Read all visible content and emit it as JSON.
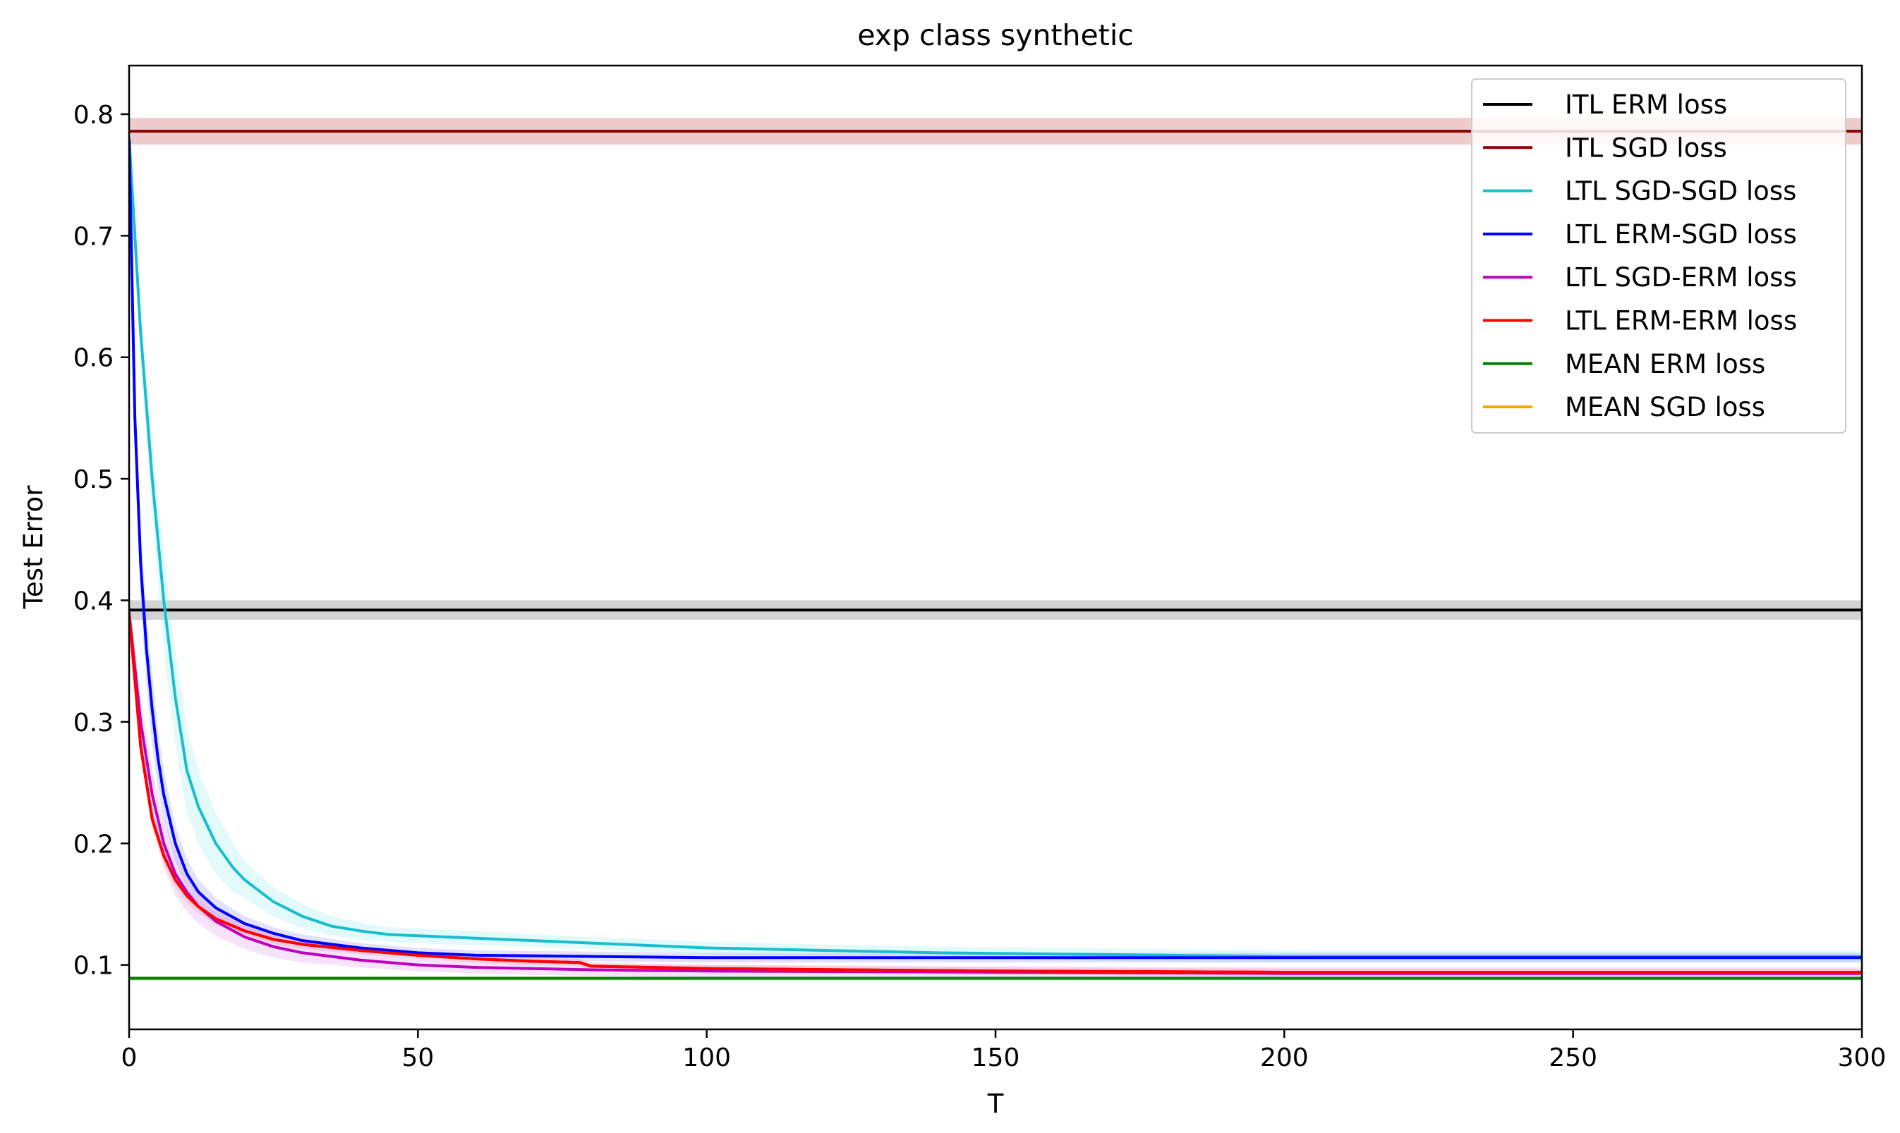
{
  "chart_data": {
    "type": "line",
    "title": "exp class synthetic",
    "xlabel": "T",
    "ylabel": "Test Error",
    "xlim": [
      0,
      300
    ],
    "ylim": [
      0.047,
      0.84
    ],
    "xticks": [
      0,
      50,
      100,
      150,
      200,
      250,
      300
    ],
    "yticks": [
      0.1,
      0.2,
      0.3,
      0.4,
      0.5,
      0.6,
      0.7,
      0.8
    ],
    "xtick_labels": [
      "0",
      "50",
      "100",
      "150",
      "200",
      "250",
      "300"
    ],
    "ytick_labels": [
      "0.1",
      "0.2",
      "0.3",
      "0.4",
      "0.5",
      "0.6",
      "0.7",
      "0.8"
    ],
    "grid": false,
    "legend_position": "top-right",
    "series": [
      {
        "name": "ITL ERM loss",
        "color": "#000000",
        "band_color": "#808080",
        "kind": "constant",
        "value": 0.392,
        "band": 0.008
      },
      {
        "name": "ITL SGD loss",
        "color": "#8b0000",
        "band_color": "#d46a6a",
        "kind": "constant",
        "value": 0.786,
        "band": 0.011
      },
      {
        "name": "LTL SGD-SGD loss",
        "color": "#17becf",
        "band_color": "#9ef0f0",
        "kind": "curve",
        "x": [
          0,
          2,
          4,
          6,
          8,
          10,
          12,
          15,
          18,
          20,
          25,
          30,
          35,
          40,
          45,
          50,
          60,
          70,
          80,
          90,
          100,
          120,
          140,
          160,
          180,
          200,
          250,
          300
        ],
        "y": [
          0.78,
          0.62,
          0.5,
          0.4,
          0.32,
          0.26,
          0.23,
          0.2,
          0.18,
          0.17,
          0.152,
          0.14,
          0.132,
          0.128,
          0.125,
          0.124,
          0.122,
          0.12,
          0.118,
          0.116,
          0.114,
          0.112,
          0.11,
          0.109,
          0.108,
          0.107,
          0.107,
          0.107
        ],
        "band": [
          0.02,
          0.02,
          0.03,
          0.04,
          0.04,
          0.035,
          0.03,
          0.025,
          0.02,
          0.015,
          0.012,
          0.01,
          0.008,
          0.007,
          0.006,
          0.006,
          0.006,
          0.005,
          0.005,
          0.005,
          0.005,
          0.005,
          0.005,
          0.005,
          0.005,
          0.005,
          0.005,
          0.005
        ]
      },
      {
        "name": "LTL ERM-SGD loss",
        "color": "#0000ff",
        "band_color": "#a0a0ff",
        "kind": "curve",
        "x": [
          0,
          1,
          2,
          3,
          4,
          5,
          6,
          8,
          10,
          12,
          15,
          20,
          25,
          30,
          40,
          50,
          60,
          80,
          100,
          150,
          200,
          250,
          300
        ],
        "y": [
          0.78,
          0.55,
          0.43,
          0.36,
          0.31,
          0.27,
          0.24,
          0.2,
          0.175,
          0.16,
          0.147,
          0.134,
          0.126,
          0.12,
          0.114,
          0.11,
          0.108,
          0.107,
          0.106,
          0.106,
          0.106,
          0.106,
          0.106
        ],
        "band": [
          0.01,
          0.02,
          0.03,
          0.03,
          0.03,
          0.025,
          0.02,
          0.015,
          0.012,
          0.01,
          0.008,
          0.006,
          0.005,
          0.005,
          0.004,
          0.004,
          0.004,
          0.004,
          0.004,
          0.004,
          0.004,
          0.004,
          0.004
        ]
      },
      {
        "name": "LTL SGD-ERM loss",
        "color": "#bf00bf",
        "band_color": "#e0a0f0",
        "kind": "curve",
        "x": [
          0,
          2,
          4,
          6,
          8,
          10,
          12,
          15,
          20,
          25,
          30,
          40,
          50,
          60,
          80,
          100,
          150,
          200,
          250,
          300
        ],
        "y": [
          0.39,
          0.3,
          0.24,
          0.2,
          0.175,
          0.16,
          0.148,
          0.136,
          0.123,
          0.115,
          0.11,
          0.104,
          0.1,
          0.098,
          0.096,
          0.095,
          0.094,
          0.093,
          0.093,
          0.093
        ],
        "band": [
          0.01,
          0.02,
          0.02,
          0.02,
          0.018,
          0.016,
          0.014,
          0.012,
          0.01,
          0.009,
          0.008,
          0.006,
          0.005,
          0.005,
          0.005,
          0.005,
          0.005,
          0.005,
          0.005,
          0.005
        ]
      },
      {
        "name": "LTL ERM-ERM loss",
        "color": "#ff0000",
        "band_color": "#ff9090",
        "kind": "curve",
        "x": [
          0,
          2,
          4,
          6,
          8,
          10,
          12,
          15,
          20,
          25,
          30,
          40,
          50,
          60,
          70,
          78,
          80,
          100,
          150,
          200,
          250,
          300
        ],
        "y": [
          0.39,
          0.28,
          0.22,
          0.19,
          0.17,
          0.157,
          0.148,
          0.138,
          0.128,
          0.121,
          0.117,
          0.112,
          0.108,
          0.105,
          0.103,
          0.102,
          0.099,
          0.097,
          0.095,
          0.094,
          0.094,
          0.094
        ],
        "band": [
          0.005,
          0.008,
          0.008,
          0.007,
          0.006,
          0.006,
          0.005,
          0.005,
          0.004,
          0.004,
          0.004,
          0.003,
          0.003,
          0.003,
          0.003,
          0.003,
          0.003,
          0.003,
          0.003,
          0.003,
          0.003,
          0.003
        ]
      },
      {
        "name": "MEAN ERM loss",
        "color": "#008000",
        "band_color": "#90d090",
        "kind": "constant",
        "value": 0.089,
        "band": 0.002
      },
      {
        "name": "MEAN SGD loss",
        "color": "#ffa500",
        "band_color": "#ffd890",
        "kind": "constant",
        "value": 0.104,
        "band": 0.003
      }
    ]
  }
}
